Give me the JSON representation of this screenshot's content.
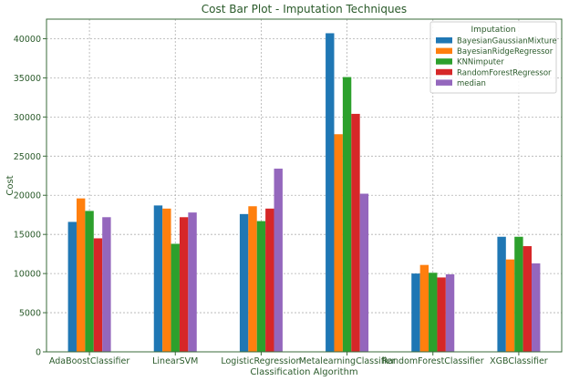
{
  "chart_data": {
    "type": "bar",
    "title": "Cost Bar Plot - Imputation Techniques",
    "xlabel": "Classification Algorithm",
    "ylabel": "Cost",
    "ylim": [
      0,
      42500
    ],
    "yticks": [
      0,
      5000,
      10000,
      15000,
      20000,
      25000,
      30000,
      35000,
      40000
    ],
    "grid": true,
    "legend_title": "Imputation",
    "legend_position": "top-right",
    "categories": [
      "AdaBoostClassifier",
      "LinearSVM",
      "LogisticRegression",
      "MetalearningClassifier",
      "RandomForestClassifier",
      "XGBClassifier"
    ],
    "series": [
      {
        "name": "BayesianGaussianMixture",
        "color": "#1f77b4",
        "values": [
          16600,
          18700,
          17600,
          40700,
          10000,
          14700
        ]
      },
      {
        "name": "BayesianRidgeRegressor",
        "color": "#ff7f0e",
        "values": [
          19600,
          18300,
          18600,
          27800,
          11100,
          11800
        ]
      },
      {
        "name": "KNNimputer",
        "color": "#2ca02c",
        "values": [
          18000,
          13800,
          16700,
          35100,
          10100,
          14700
        ]
      },
      {
        "name": "RandomForestRegressor",
        "color": "#d62728",
        "values": [
          14500,
          17200,
          18300,
          30400,
          9500,
          13500
        ]
      },
      {
        "name": "median",
        "color": "#9467bd",
        "values": [
          17200,
          17800,
          23400,
          20200,
          9900,
          11300
        ]
      }
    ]
  }
}
